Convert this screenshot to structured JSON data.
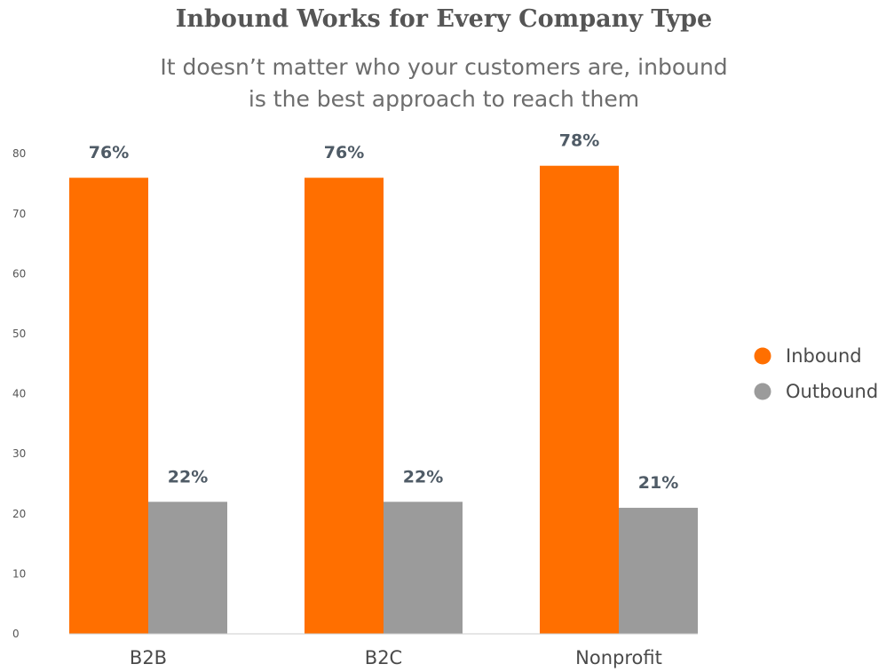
{
  "chart_data": {
    "type": "bar",
    "title": "Inbound Works for Every Company Type",
    "subtitle_lines": [
      "It doesn’t matter who your customers are, inbound",
      "is the best approach to reach them"
    ],
    "categories": [
      "B2B",
      "B2C",
      "Nonprofit"
    ],
    "series": [
      {
        "name": "Inbound",
        "values": [
          76,
          76,
          78
        ],
        "labels": [
          "76%",
          "76%",
          "78%"
        ],
        "color": "#ff6f00"
      },
      {
        "name": "Outbound",
        "values": [
          22,
          22,
          21
        ],
        "labels": [
          "22%",
          "22%",
          "21%"
        ],
        "color": "#9b9b9b"
      }
    ],
    "yticks": [
      0,
      10,
      20,
      30,
      40,
      50,
      60,
      70,
      80
    ],
    "ylim": [
      0,
      80
    ],
    "grid": false,
    "legend_position": "right"
  }
}
